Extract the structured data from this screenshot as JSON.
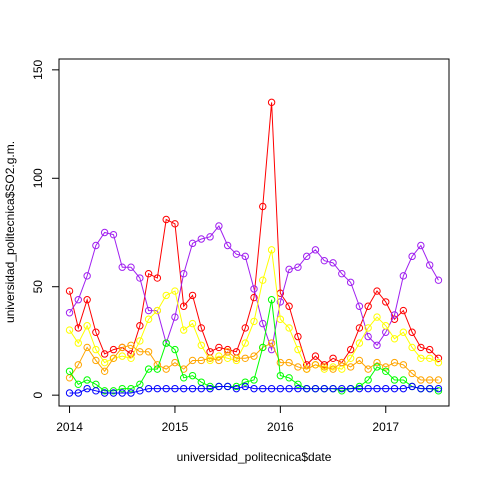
{
  "chart_data": {
    "type": "line",
    "title": "",
    "xlabel": "universidad_politecnica$date",
    "ylabel": "universidad_politecnica$SO2.g.m.",
    "x_ticks": [
      "2014",
      "2015",
      "2016",
      "2017"
    ],
    "y_ticks": [
      "0",
      "50",
      "100",
      "150"
    ],
    "xlim": [
      2013.9,
      2017.6
    ],
    "ylim": [
      -5,
      155
    ],
    "grid": false,
    "legend": "none",
    "x": [
      2014.0,
      2014.083,
      2014.167,
      2014.25,
      2014.333,
      2014.417,
      2014.5,
      2014.583,
      2014.667,
      2014.75,
      2014.833,
      2014.917,
      2015.0,
      2015.083,
      2015.167,
      2015.25,
      2015.333,
      2015.417,
      2015.5,
      2015.583,
      2015.667,
      2015.75,
      2015.833,
      2015.917,
      2016.0,
      2016.083,
      2016.167,
      2016.25,
      2016.333,
      2016.417,
      2016.5,
      2016.583,
      2016.667,
      2016.75,
      2016.833,
      2016.917,
      2017.0,
      2017.083,
      2017.167,
      2017.25,
      2017.333,
      2017.417,
      2017.5
    ],
    "series": [
      {
        "color": "#FF0000",
        "values": [
          48,
          31,
          44,
          29,
          19,
          21,
          22,
          19,
          32,
          56,
          54,
          81,
          79,
          41,
          46,
          31,
          20,
          22,
          21,
          20,
          31,
          45,
          87,
          135,
          47,
          41,
          27,
          14,
          18,
          14,
          17,
          15,
          21,
          31,
          41,
          48,
          43,
          35,
          39,
          29,
          22,
          21,
          17
        ]
      },
      {
        "color": "#A020F0",
        "values": [
          38,
          44,
          55,
          69,
          75,
          74,
          59,
          59,
          54,
          39,
          39,
          24,
          36,
          56,
          70,
          72,
          73,
          78,
          69,
          65,
          64,
          49,
          33,
          21,
          43,
          58,
          59,
          64,
          67,
          62,
          61,
          56,
          52,
          41,
          27,
          23,
          29,
          37,
          55,
          64,
          69,
          60,
          53
        ]
      },
      {
        "color": "#FFFF00",
        "values": [
          30,
          24,
          32,
          21,
          15,
          17,
          18,
          17,
          25,
          35,
          39,
          46,
          48,
          30,
          33,
          23,
          16,
          18,
          17,
          16,
          24,
          34,
          53,
          67,
          35,
          31,
          21,
          12,
          14,
          12,
          13,
          12,
          17,
          24,
          31,
          36,
          32,
          26,
          29,
          22,
          17,
          17,
          15
        ]
      },
      {
        "color": "#FFA500",
        "values": [
          8,
          14,
          22,
          16,
          11,
          17,
          22,
          23,
          20,
          20,
          14,
          12,
          15,
          12,
          16,
          16,
          17,
          16,
          20,
          17,
          17,
          18,
          22,
          24,
          15,
          15,
          13,
          12,
          14,
          13,
          12,
          15,
          13,
          16,
          12,
          15,
          13,
          15,
          14,
          10,
          7,
          7,
          7
        ]
      },
      {
        "color": "#00FF00",
        "values": [
          11,
          5,
          7,
          5,
          2,
          2,
          3,
          3,
          5,
          12,
          12,
          24,
          21,
          8,
          9,
          6,
          4,
          4,
          4,
          4,
          6,
          7,
          22,
          44,
          9,
          8,
          5,
          3,
          3,
          3,
          3,
          2,
          3,
          4,
          7,
          13,
          11,
          7,
          7,
          4,
          3,
          3,
          2
        ]
      },
      {
        "color": "#0000FF",
        "values": [
          1,
          1,
          3,
          2,
          1,
          1,
          1,
          1,
          2,
          3,
          3,
          3,
          3,
          3,
          3,
          3,
          3,
          4,
          4,
          3,
          4,
          3,
          3,
          3,
          3,
          3,
          3,
          3,
          3,
          3,
          3,
          3,
          3,
          3,
          3,
          3,
          3,
          3,
          3,
          4,
          3,
          3,
          3
        ]
      }
    ]
  }
}
